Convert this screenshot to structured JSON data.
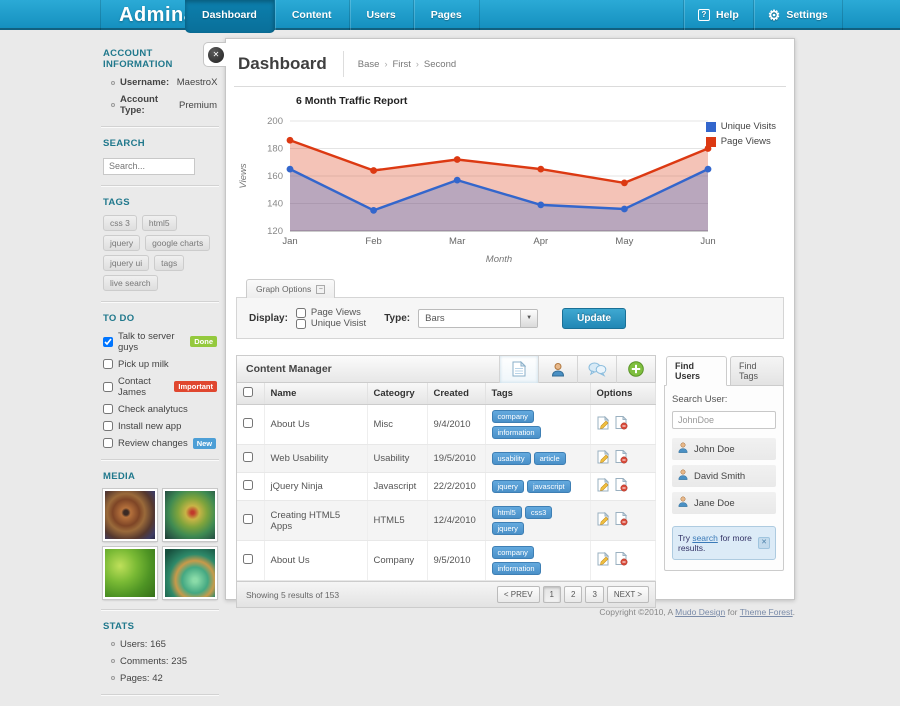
{
  "header": {
    "logo": "Admina",
    "nav": [
      {
        "label": "Dashboard",
        "active": true
      },
      {
        "label": "Content",
        "active": false
      },
      {
        "label": "Users",
        "active": false
      },
      {
        "label": "Pages",
        "active": false
      }
    ],
    "help_label": "Help",
    "settings_label": "Settings"
  },
  "sidebar": {
    "account": {
      "title": "ACCOUNT INFORMATION",
      "items": [
        {
          "label": "Username:",
          "value": "MaestroX"
        },
        {
          "label": "Account Type:",
          "value": "Premium"
        }
      ]
    },
    "search": {
      "title": "SEARCH",
      "placeholder": "Search..."
    },
    "tags": {
      "title": "TAGS",
      "items": [
        "css 3",
        "html5",
        "jquery",
        "google charts",
        "jquery ui",
        "tags",
        "live search"
      ]
    },
    "todo": {
      "title": "TO DO",
      "items": [
        {
          "label": "Talk to server guys",
          "checked": true,
          "badge": "Done",
          "badge_color": "#94C93D"
        },
        {
          "label": "Pick up milk",
          "checked": false,
          "badge": null,
          "badge_color": null
        },
        {
          "label": "Contact James",
          "checked": false,
          "badge": "Important",
          "badge_color": "#E0472F"
        },
        {
          "label": "Check analytucs",
          "checked": false,
          "badge": null,
          "badge_color": null
        },
        {
          "label": "Install new app",
          "checked": false,
          "badge": null,
          "badge_color": null
        },
        {
          "label": "Review changes",
          "checked": false,
          "badge": "New",
          "badge_color": "#4D9FD6"
        }
      ]
    },
    "media": {
      "title": "MEDIA"
    },
    "stats": {
      "title": "STATS",
      "items": [
        "Users: 165",
        "Comments: 235",
        "Pages: 42"
      ]
    }
  },
  "main": {
    "title": "Dashboard",
    "breadcrumb": [
      "Base",
      "First",
      "Second"
    ],
    "breadcrumb_separator": "›",
    "graph_options": {
      "tab_label": "Graph Options",
      "display_label": "Display:",
      "checkboxes": [
        "Page Views",
        "Unique Visist"
      ],
      "type_label": "Type:",
      "type_value": "Bars",
      "update_label": "Update"
    },
    "content_manager": {
      "title": "Content Manager",
      "columns": [
        "Name",
        "Cateogry",
        "Created",
        "Tags",
        "Options"
      ],
      "rows": [
        {
          "name": "About Us",
          "category": "Misc",
          "created": "9/4/2010",
          "tags": [
            "company",
            "information"
          ]
        },
        {
          "name": "Web Usability",
          "category": "Usability",
          "created": "19/5/2010",
          "tags": [
            "usability",
            "article"
          ]
        },
        {
          "name": "jQuery Ninja",
          "category": "Javascript",
          "created": "22/2/2010",
          "tags": [
            "jquery",
            "javascript"
          ]
        },
        {
          "name": "Creating HTML5 Apps",
          "category": "HTML5",
          "created": "12/4/2010",
          "tags": [
            "html5",
            "css3",
            "jquery"
          ]
        },
        {
          "name": "About Us",
          "category": "Company",
          "created": "9/5/2010",
          "tags": [
            "company",
            "information"
          ]
        }
      ],
      "summary": "Showing 5 results of 153",
      "pagination": [
        "< PREV",
        "1",
        "2",
        "3",
        "NEXT >"
      ],
      "pagination_active": "1"
    },
    "find_panel": {
      "tabs": [
        "Find Users",
        "Find Tags"
      ],
      "active_tab": "Find Users",
      "search_label": "Search User:",
      "search_value": "JohnDoe",
      "users": [
        "John Doe",
        "David Smith",
        "Jane Doe"
      ],
      "notice_prefix": "Try ",
      "notice_link": "search",
      "notice_suffix": " for more results."
    }
  },
  "chart_data": {
    "type": "line",
    "title": "6 Month Traffic Report",
    "xlabel": "Month",
    "ylabel": "Views",
    "categories": [
      "Jan",
      "Feb",
      "Mar",
      "Apr",
      "May",
      "Jun"
    ],
    "series": [
      {
        "name": "Unique Visits",
        "color": "#3366CC",
        "values": [
          165,
          135,
          157,
          139,
          136,
          165
        ]
      },
      {
        "name": "Page Views",
        "color": "#DC3912",
        "values": [
          186,
          164,
          172,
          165,
          155,
          180
        ]
      }
    ],
    "ylim": [
      120,
      200
    ],
    "yticks": [
      120,
      140,
      160,
      180,
      200
    ],
    "grid": true,
    "legend_position": "top-right",
    "area_fill": true
  },
  "footer": {
    "prefix": "Copyright ©2010, A ",
    "link1": "Mudo Design",
    "middle": " for ",
    "link2": "Theme Forest",
    "suffix": "."
  }
}
